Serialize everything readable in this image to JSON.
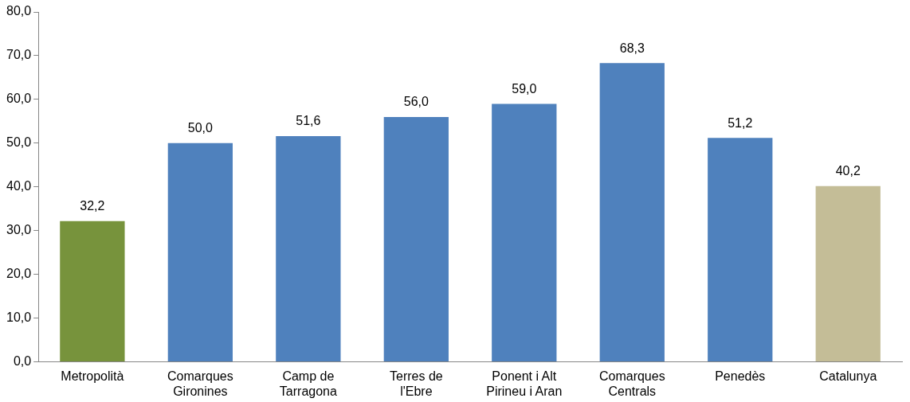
{
  "chart_data": {
    "type": "bar",
    "categories": [
      "Metropolità",
      "Comarques Gironines",
      "Camp de Tarragona",
      "Terres de l'Ebre",
      "Ponent i Alt Pirineu i Aran",
      "Comarques Centrals",
      "Penedès",
      "Catalunya"
    ],
    "values": [
      32.2,
      50.0,
      51.6,
      56.0,
      59.0,
      68.3,
      51.2,
      40.2
    ],
    "colors": [
      "#77933c",
      "#4f81bd",
      "#4f81bd",
      "#4f81bd",
      "#4f81bd",
      "#4f81bd",
      "#4f81bd",
      "#c4bd97"
    ],
    "value_labels": [
      "32,2",
      "50,0",
      "51,6",
      "56,0",
      "59,0",
      "68,3",
      "51,2",
      "40,2"
    ],
    "ylim": [
      0,
      80
    ],
    "yticks": [
      {
        "value": 0,
        "label": "0,0"
      },
      {
        "value": 10,
        "label": "10,0"
      },
      {
        "value": 20,
        "label": "20,0"
      },
      {
        "value": 30,
        "label": "30,0"
      },
      {
        "value": 40,
        "label": "40,0"
      },
      {
        "value": 50,
        "label": "50,0"
      },
      {
        "value": 60,
        "label": "60,0"
      },
      {
        "value": 70,
        "label": "70,0"
      },
      {
        "value": 80,
        "label": "80,0"
      }
    ],
    "grid": false,
    "legend": false
  }
}
